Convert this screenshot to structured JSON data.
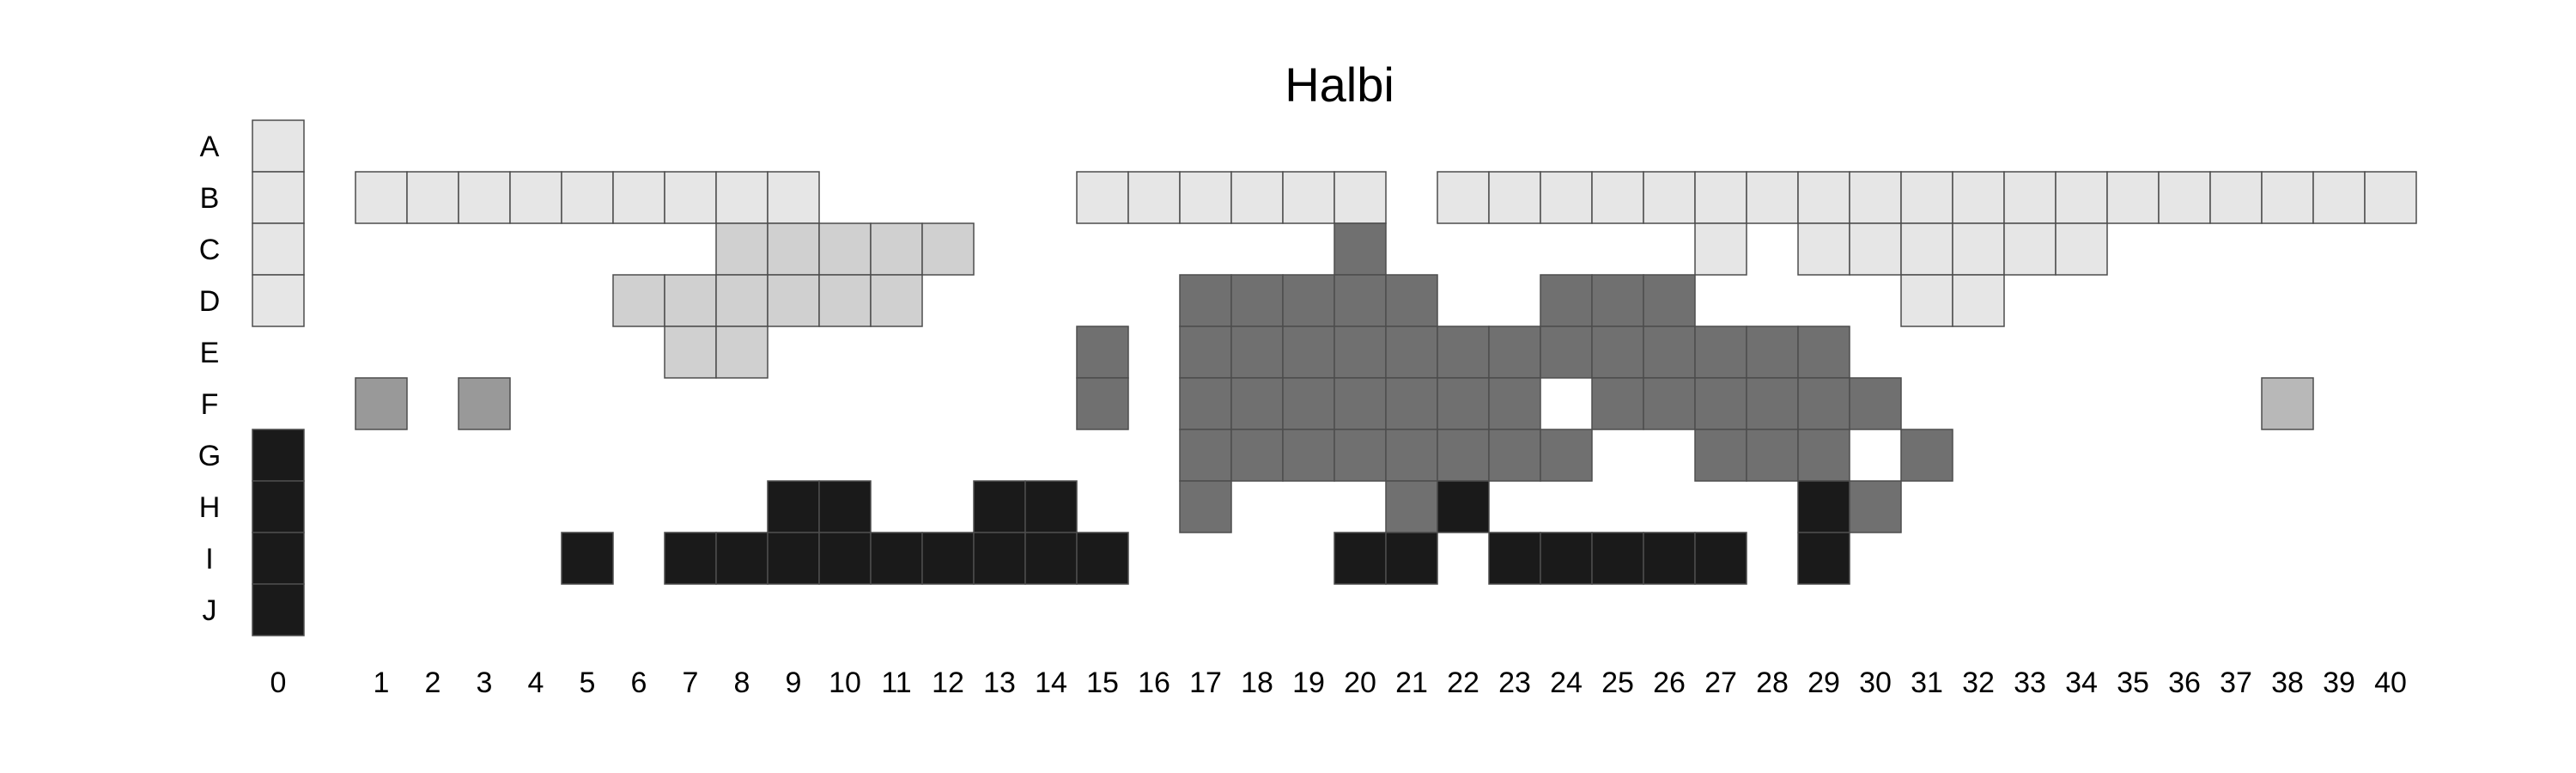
{
  "chart_data": {
    "type": "heatmap",
    "title": "Halbi",
    "grid": false,
    "rows": [
      "A",
      "B",
      "C",
      "D",
      "E",
      "F",
      "G",
      "H",
      "I",
      "J"
    ],
    "columns": [
      "0",
      "1",
      "2",
      "3",
      "4",
      "5",
      "6",
      "7",
      "8",
      "9",
      "10",
      "11",
      "12",
      "13",
      "14",
      "15",
      "16",
      "17",
      "18",
      "19",
      "20",
      "21",
      "22",
      "23",
      "24",
      "25",
      "26",
      "27",
      "28",
      "29",
      "30",
      "31",
      "32",
      "33",
      "34",
      "35",
      "36",
      "37",
      "38",
      "39",
      "40"
    ],
    "palette": {
      "light": "#e6e6e6",
      "light_mid": "#d0d0d0",
      "mid": "#999999",
      "pale_mid": "#b8b8b8",
      "dark_mid": "#707070",
      "dark": "#1a1a1a",
      "border": "#4d4d4d"
    },
    "cells": [
      {
        "row": "A",
        "col": "0",
        "shade": "light"
      },
      {
        "row": "B",
        "col": "0",
        "shade": "light"
      },
      {
        "row": "B",
        "col": "1",
        "shade": "light"
      },
      {
        "row": "B",
        "col": "2",
        "shade": "light"
      },
      {
        "row": "B",
        "col": "3",
        "shade": "light"
      },
      {
        "row": "B",
        "col": "4",
        "shade": "light"
      },
      {
        "row": "B",
        "col": "5",
        "shade": "light"
      },
      {
        "row": "B",
        "col": "6",
        "shade": "light"
      },
      {
        "row": "B",
        "col": "7",
        "shade": "light"
      },
      {
        "row": "B",
        "col": "8",
        "shade": "light"
      },
      {
        "row": "B",
        "col": "9",
        "shade": "light"
      },
      {
        "row": "B",
        "col": "15",
        "shade": "light"
      },
      {
        "row": "B",
        "col": "16",
        "shade": "light"
      },
      {
        "row": "B",
        "col": "17",
        "shade": "light"
      },
      {
        "row": "B",
        "col": "18",
        "shade": "light"
      },
      {
        "row": "B",
        "col": "19",
        "shade": "light"
      },
      {
        "row": "B",
        "col": "20",
        "shade": "light"
      },
      {
        "row": "B",
        "col": "22",
        "shade": "light"
      },
      {
        "row": "B",
        "col": "23",
        "shade": "light"
      },
      {
        "row": "B",
        "col": "24",
        "shade": "light"
      },
      {
        "row": "B",
        "col": "25",
        "shade": "light"
      },
      {
        "row": "B",
        "col": "26",
        "shade": "light"
      },
      {
        "row": "B",
        "col": "27",
        "shade": "light"
      },
      {
        "row": "B",
        "col": "28",
        "shade": "light"
      },
      {
        "row": "B",
        "col": "29",
        "shade": "light"
      },
      {
        "row": "B",
        "col": "30",
        "shade": "light"
      },
      {
        "row": "B",
        "col": "31",
        "shade": "light"
      },
      {
        "row": "B",
        "col": "32",
        "shade": "light"
      },
      {
        "row": "B",
        "col": "33",
        "shade": "light"
      },
      {
        "row": "B",
        "col": "34",
        "shade": "light"
      },
      {
        "row": "B",
        "col": "35",
        "shade": "light"
      },
      {
        "row": "B",
        "col": "36",
        "shade": "light"
      },
      {
        "row": "B",
        "col": "37",
        "shade": "light"
      },
      {
        "row": "B",
        "col": "38",
        "shade": "light"
      },
      {
        "row": "B",
        "col": "39",
        "shade": "light"
      },
      {
        "row": "B",
        "col": "40",
        "shade": "light"
      },
      {
        "row": "C",
        "col": "0",
        "shade": "light"
      },
      {
        "row": "C",
        "col": "8",
        "shade": "light_mid"
      },
      {
        "row": "C",
        "col": "9",
        "shade": "light_mid"
      },
      {
        "row": "C",
        "col": "10",
        "shade": "light_mid"
      },
      {
        "row": "C",
        "col": "11",
        "shade": "light_mid"
      },
      {
        "row": "C",
        "col": "12",
        "shade": "light_mid"
      },
      {
        "row": "C",
        "col": "20",
        "shade": "dark_mid"
      },
      {
        "row": "C",
        "col": "27",
        "shade": "light"
      },
      {
        "row": "C",
        "col": "29",
        "shade": "light"
      },
      {
        "row": "C",
        "col": "30",
        "shade": "light"
      },
      {
        "row": "C",
        "col": "31",
        "shade": "light"
      },
      {
        "row": "C",
        "col": "32",
        "shade": "light"
      },
      {
        "row": "C",
        "col": "33",
        "shade": "light"
      },
      {
        "row": "C",
        "col": "34",
        "shade": "light"
      },
      {
        "row": "D",
        "col": "0",
        "shade": "light"
      },
      {
        "row": "D",
        "col": "6",
        "shade": "light_mid"
      },
      {
        "row": "D",
        "col": "7",
        "shade": "light_mid"
      },
      {
        "row": "D",
        "col": "8",
        "shade": "light_mid"
      },
      {
        "row": "D",
        "col": "9",
        "shade": "light_mid"
      },
      {
        "row": "D",
        "col": "10",
        "shade": "light_mid"
      },
      {
        "row": "D",
        "col": "11",
        "shade": "light_mid"
      },
      {
        "row": "D",
        "col": "17",
        "shade": "dark_mid"
      },
      {
        "row": "D",
        "col": "18",
        "shade": "dark_mid"
      },
      {
        "row": "D",
        "col": "19",
        "shade": "dark_mid"
      },
      {
        "row": "D",
        "col": "20",
        "shade": "dark_mid"
      },
      {
        "row": "D",
        "col": "21",
        "shade": "dark_mid"
      },
      {
        "row": "D",
        "col": "24",
        "shade": "dark_mid"
      },
      {
        "row": "D",
        "col": "25",
        "shade": "dark_mid"
      },
      {
        "row": "D",
        "col": "26",
        "shade": "dark_mid"
      },
      {
        "row": "D",
        "col": "31",
        "shade": "light"
      },
      {
        "row": "D",
        "col": "32",
        "shade": "light"
      },
      {
        "row": "E",
        "col": "7",
        "shade": "light_mid"
      },
      {
        "row": "E",
        "col": "8",
        "shade": "light_mid"
      },
      {
        "row": "E",
        "col": "15",
        "shade": "dark_mid"
      },
      {
        "row": "E",
        "col": "17",
        "shade": "dark_mid"
      },
      {
        "row": "E",
        "col": "18",
        "shade": "dark_mid"
      },
      {
        "row": "E",
        "col": "19",
        "shade": "dark_mid"
      },
      {
        "row": "E",
        "col": "20",
        "shade": "dark_mid"
      },
      {
        "row": "E",
        "col": "21",
        "shade": "dark_mid"
      },
      {
        "row": "E",
        "col": "22",
        "shade": "dark_mid"
      },
      {
        "row": "E",
        "col": "23",
        "shade": "dark_mid"
      },
      {
        "row": "E",
        "col": "24",
        "shade": "dark_mid"
      },
      {
        "row": "E",
        "col": "25",
        "shade": "dark_mid"
      },
      {
        "row": "E",
        "col": "26",
        "shade": "dark_mid"
      },
      {
        "row": "E",
        "col": "27",
        "shade": "dark_mid"
      },
      {
        "row": "E",
        "col": "28",
        "shade": "dark_mid"
      },
      {
        "row": "E",
        "col": "29",
        "shade": "dark_mid"
      },
      {
        "row": "F",
        "col": "1",
        "shade": "mid"
      },
      {
        "row": "F",
        "col": "3",
        "shade": "mid"
      },
      {
        "row": "F",
        "col": "15",
        "shade": "dark_mid"
      },
      {
        "row": "F",
        "col": "17",
        "shade": "dark_mid"
      },
      {
        "row": "F",
        "col": "18",
        "shade": "dark_mid"
      },
      {
        "row": "F",
        "col": "19",
        "shade": "dark_mid"
      },
      {
        "row": "F",
        "col": "20",
        "shade": "dark_mid"
      },
      {
        "row": "F",
        "col": "21",
        "shade": "dark_mid"
      },
      {
        "row": "F",
        "col": "22",
        "shade": "dark_mid"
      },
      {
        "row": "F",
        "col": "23",
        "shade": "dark_mid"
      },
      {
        "row": "F",
        "col": "25",
        "shade": "dark_mid"
      },
      {
        "row": "F",
        "col": "26",
        "shade": "dark_mid"
      },
      {
        "row": "F",
        "col": "27",
        "shade": "dark_mid"
      },
      {
        "row": "F",
        "col": "28",
        "shade": "dark_mid"
      },
      {
        "row": "F",
        "col": "29",
        "shade": "dark_mid"
      },
      {
        "row": "F",
        "col": "30",
        "shade": "dark_mid"
      },
      {
        "row": "F",
        "col": "38",
        "shade": "pale_mid"
      },
      {
        "row": "G",
        "col": "0",
        "shade": "dark"
      },
      {
        "row": "G",
        "col": "17",
        "shade": "dark_mid"
      },
      {
        "row": "G",
        "col": "18",
        "shade": "dark_mid"
      },
      {
        "row": "G",
        "col": "19",
        "shade": "dark_mid"
      },
      {
        "row": "G",
        "col": "20",
        "shade": "dark_mid"
      },
      {
        "row": "G",
        "col": "21",
        "shade": "dark_mid"
      },
      {
        "row": "G",
        "col": "22",
        "shade": "dark_mid"
      },
      {
        "row": "G",
        "col": "23",
        "shade": "dark_mid"
      },
      {
        "row": "G",
        "col": "24",
        "shade": "dark_mid"
      },
      {
        "row": "G",
        "col": "27",
        "shade": "dark_mid"
      },
      {
        "row": "G",
        "col": "28",
        "shade": "dark_mid"
      },
      {
        "row": "G",
        "col": "29",
        "shade": "dark_mid"
      },
      {
        "row": "G",
        "col": "31",
        "shade": "dark_mid"
      },
      {
        "row": "H",
        "col": "0",
        "shade": "dark"
      },
      {
        "row": "H",
        "col": "9",
        "shade": "dark"
      },
      {
        "row": "H",
        "col": "10",
        "shade": "dark"
      },
      {
        "row": "H",
        "col": "13",
        "shade": "dark"
      },
      {
        "row": "H",
        "col": "14",
        "shade": "dark"
      },
      {
        "row": "H",
        "col": "17",
        "shade": "dark_mid"
      },
      {
        "row": "H",
        "col": "21",
        "shade": "dark_mid"
      },
      {
        "row": "H",
        "col": "22",
        "shade": "dark"
      },
      {
        "row": "H",
        "col": "29",
        "shade": "dark"
      },
      {
        "row": "H",
        "col": "30",
        "shade": "dark_mid"
      },
      {
        "row": "I",
        "col": "0",
        "shade": "dark"
      },
      {
        "row": "I",
        "col": "5",
        "shade": "dark"
      },
      {
        "row": "I",
        "col": "7",
        "shade": "dark"
      },
      {
        "row": "I",
        "col": "8",
        "shade": "dark"
      },
      {
        "row": "I",
        "col": "9",
        "shade": "dark"
      },
      {
        "row": "I",
        "col": "10",
        "shade": "dark"
      },
      {
        "row": "I",
        "col": "11",
        "shade": "dark"
      },
      {
        "row": "I",
        "col": "12",
        "shade": "dark"
      },
      {
        "row": "I",
        "col": "13",
        "shade": "dark"
      },
      {
        "row": "I",
        "col": "14",
        "shade": "dark"
      },
      {
        "row": "I",
        "col": "15",
        "shade": "dark"
      },
      {
        "row": "I",
        "col": "20",
        "shade": "dark"
      },
      {
        "row": "I",
        "col": "21",
        "shade": "dark"
      },
      {
        "row": "I",
        "col": "23",
        "shade": "dark"
      },
      {
        "row": "I",
        "col": "24",
        "shade": "dark"
      },
      {
        "row": "I",
        "col": "25",
        "shade": "dark"
      },
      {
        "row": "I",
        "col": "26",
        "shade": "dark"
      },
      {
        "row": "I",
        "col": "27",
        "shade": "dark"
      },
      {
        "row": "I",
        "col": "29",
        "shade": "dark"
      },
      {
        "row": "J",
        "col": "0",
        "shade": "dark"
      }
    ]
  }
}
